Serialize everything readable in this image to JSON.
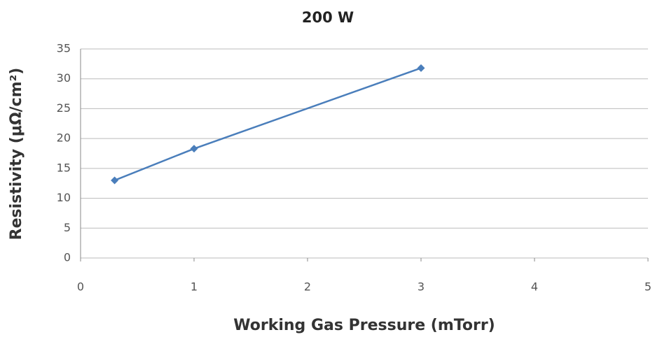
{
  "chart_data": {
    "type": "line",
    "title": "200 W",
    "x_label": "Working Gas Pressure (mTorr)",
    "y_label": "Resistivity (μΩ/cm²)",
    "series": [
      {
        "name": "200 W",
        "color": "#4a7ebb",
        "x": [
          0.3,
          1,
          3
        ],
        "values": [
          13,
          18.3,
          31.8
        ]
      }
    ],
    "xlim": [
      0,
      5
    ],
    "xticks": [
      0,
      1,
      2,
      3,
      4,
      5
    ],
    "ylim": [
      0,
      35
    ],
    "yticks": [
      0,
      5,
      10,
      15,
      20,
      25,
      30,
      35
    ],
    "grid": true
  }
}
